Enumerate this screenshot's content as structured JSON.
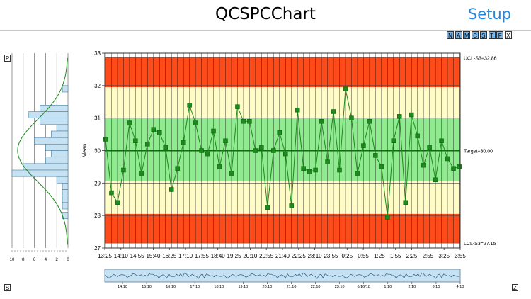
{
  "header": {
    "title": "QCSPCChart",
    "setup_label": "Setup"
  },
  "toolbar": [
    {
      "label": "N",
      "name": "toolbar-n-button",
      "bg": "#7ab6e8"
    },
    {
      "label": "A",
      "name": "toolbar-a-button",
      "bg": "#7ab6e8"
    },
    {
      "label": "M",
      "name": "toolbar-m-button",
      "bg": "#7ab6e8"
    },
    {
      "label": "C",
      "name": "toolbar-c-button",
      "bg": "#7ab6e8"
    },
    {
      "label": "S",
      "name": "toolbar-s-button",
      "bg": "#7ab6e8"
    },
    {
      "label": "T",
      "name": "toolbar-t-button",
      "bg": "#7ab6e8"
    },
    {
      "label": "F",
      "name": "toolbar-f-button",
      "bg": "#7ab6e8"
    },
    {
      "label": "X",
      "name": "toolbar-x-button",
      "bg": "#ffffff"
    }
  ],
  "corners": {
    "p": "P",
    "s": "S",
    "z": "Z"
  },
  "colors": {
    "red": "#ff4a1a",
    "yellow": "#fffcc8",
    "green": "#90ea90",
    "line": "#1c8a1c",
    "marker": "#1d8a1d",
    "hist": "#c6e1f2",
    "scroll": "#c6e1f2"
  },
  "chart_data": {
    "type": "line",
    "ylabel": "Mean",
    "ylim": [
      27,
      33
    ],
    "y_ticks": [
      "27",
      "28",
      "29",
      "30",
      "31",
      "32",
      "33"
    ],
    "x_ticks": [
      "13:25",
      "14:10",
      "14:55",
      "15:40",
      "16:25",
      "17:10",
      "17:55",
      "18:40",
      "19:25",
      "20:10",
      "20:55",
      "21:40",
      "22:25",
      "23:10",
      "23:55",
      "0:25",
      "0:55",
      "1:25",
      "1:55",
      "2:25",
      "2:55",
      "3:25",
      "3:55"
    ],
    "zones": {
      "ucl": 32.86,
      "upper_b": 31.95,
      "upper_a": 31.0,
      "lower_a": 29.05,
      "lower_b": 28.05,
      "lcl": 27.15
    },
    "limit_labels": {
      "ucl": "UCL-S3=32.86",
      "target": "Target=30.00",
      "lcl": "LCL-S3=27.15"
    },
    "target": 30.0,
    "values": [
      30.35,
      28.7,
      28.4,
      29.4,
      30.85,
      30.3,
      29.3,
      30.2,
      30.65,
      30.55,
      30.1,
      28.8,
      29.45,
      30.25,
      31.4,
      30.85,
      30.0,
      29.9,
      30.6,
      29.5,
      30.3,
      29.3,
      31.35,
      30.9,
      30.9,
      30.0,
      30.1,
      28.25,
      30.0,
      30.55,
      29.9,
      28.3,
      31.25,
      29.45,
      29.35,
      29.4,
      30.9,
      29.65,
      31.2,
      29.4,
      31.9,
      31.0,
      29.3,
      30.15,
      30.9,
      29.85,
      29.5,
      27.95,
      30.3,
      31.05,
      28.4,
      31.1,
      30.45,
      29.55,
      30.1,
      29.1,
      30.3,
      29.75,
      29.45,
      29.5
    ],
    "histogram": {
      "x_ticks": [
        "10",
        "8",
        "6",
        "4",
        "2",
        "0"
      ],
      "bins": [
        {
          "y0": 31.8,
          "y1": 32.0,
          "count": 1
        },
        {
          "y0": 31.4,
          "y1": 31.6,
          "count": 0
        },
        {
          "y0": 31.2,
          "y1": 31.4,
          "count": 5
        },
        {
          "y0": 31.0,
          "y1": 31.2,
          "count": 7
        },
        {
          "y0": 30.8,
          "y1": 31.0,
          "count": 5
        },
        {
          "y0": 30.6,
          "y1": 30.8,
          "count": 2
        },
        {
          "y0": 30.4,
          "y1": 30.6,
          "count": 3
        },
        {
          "y0": 30.2,
          "y1": 30.4,
          "count": 6
        },
        {
          "y0": 30.0,
          "y1": 30.2,
          "count": 4
        },
        {
          "y0": 29.8,
          "y1": 30.0,
          "count": 3
        },
        {
          "y0": 29.6,
          "y1": 29.8,
          "count": 4
        },
        {
          "y0": 29.4,
          "y1": 29.6,
          "count": 8
        },
        {
          "y0": 29.2,
          "y1": 29.4,
          "count": 10
        },
        {
          "y0": 29.0,
          "y1": 29.2,
          "count": 2
        },
        {
          "y0": 28.8,
          "y1": 29.0,
          "count": 1
        },
        {
          "y0": 28.6,
          "y1": 28.8,
          "count": 1
        },
        {
          "y0": 28.4,
          "y1": 28.6,
          "count": 1
        },
        {
          "y0": 28.2,
          "y1": 28.4,
          "count": 1
        },
        {
          "y0": 27.9,
          "y1": 28.1,
          "count": 1
        }
      ]
    },
    "overview_ticks": [
      "14:10",
      "15:10",
      "16:10",
      "17:10",
      "18:10",
      "19:10",
      "20:10",
      "21:10",
      "22:10",
      "23:10",
      "6/16/18",
      "1:10",
      "2:10",
      "3:10",
      "4:10"
    ]
  }
}
